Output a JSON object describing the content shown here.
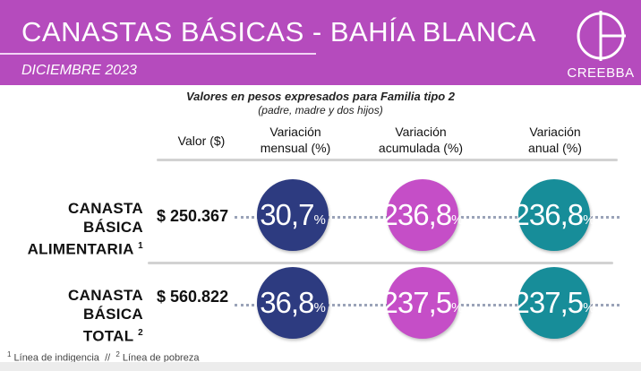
{
  "header": {
    "title": "CANASTAS  BÁSICAS - BAHÍA  BLANCA",
    "date": "DICIEMBRE 2023",
    "logo_label": "CREEBBA",
    "bg_color": "#b54bbd"
  },
  "subtitle": {
    "line1": "Valores en pesos expresados para Familia tipo 2",
    "line2": "(padre, madre y dos hijos)"
  },
  "columns": {
    "valor": "Valor ($)",
    "mensual_l1": "Variación",
    "mensual_l2": "mensual (%)",
    "acumulada_l1": "Variación",
    "acumulada_l2": "acumulada (%)",
    "anual_l1": "Variación",
    "anual_l2": "anual (%)"
  },
  "rows": [
    {
      "label_l1": "CANASTA BÁSICA",
      "label_l2": "ALIMENTARIA",
      "note": "1",
      "value": "$ 250.367",
      "mensual": "30,7",
      "acumulada": "236,8",
      "anual": "236,8"
    },
    {
      "label_l1": "CANASTA BÁSICA",
      "label_l2": "TOTAL",
      "note": "2",
      "value": "$ 560.822",
      "mensual": "36,8",
      "acumulada": "237,5",
      "anual": "237,5"
    }
  ],
  "percent_sign": "%",
  "footnotes": {
    "n1": "1",
    "t1": "Línea de indigencia",
    "sep": "//",
    "n2": "2",
    "t2": "Línea de pobreza"
  },
  "colors": {
    "mensual": "#2d3b80",
    "acumulada": "#c54ec7",
    "anual": "#178d99"
  }
}
